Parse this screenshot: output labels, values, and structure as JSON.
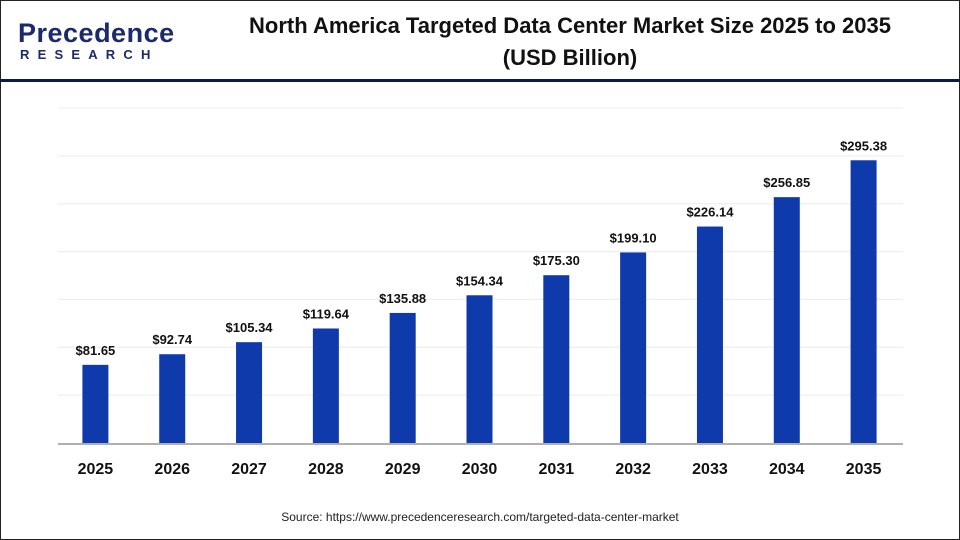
{
  "logo": {
    "main": "Precedence",
    "sub": "RESEARCH"
  },
  "title_line1": "North America Targeted Data Center Market Size 2025 to 2035",
  "title_line2": "(USD Billion)",
  "source": "Source: https://www.precedenceresearch.com/targeted-data-center-market",
  "colors": {
    "bar": "#0f3aab",
    "grid": "#ececec",
    "axis": "#b0b0b0",
    "header_line": "#0f1a4a"
  },
  "chart_data": {
    "type": "bar",
    "title": "North America Targeted Data Center Market Size 2025 to 2035 (USD Billion)",
    "categories": [
      "2025",
      "2026",
      "2027",
      "2028",
      "2029",
      "2030",
      "2031",
      "2032",
      "2033",
      "2034",
      "2035"
    ],
    "values": [
      81.65,
      92.74,
      105.34,
      119.64,
      135.88,
      154.34,
      175.3,
      199.1,
      226.14,
      256.85,
      295.38
    ],
    "labels": [
      "$81.65",
      "$92.74",
      "$105.34",
      "$119.64",
      "$135.88",
      "$154.34",
      "$175.30",
      "$199.10",
      "$226.14",
      "$256.85",
      "$295.38"
    ],
    "xlabel": "",
    "ylabel": "",
    "ylim": [
      0,
      350
    ],
    "grid": true,
    "y_axis_labels_shown": false
  }
}
